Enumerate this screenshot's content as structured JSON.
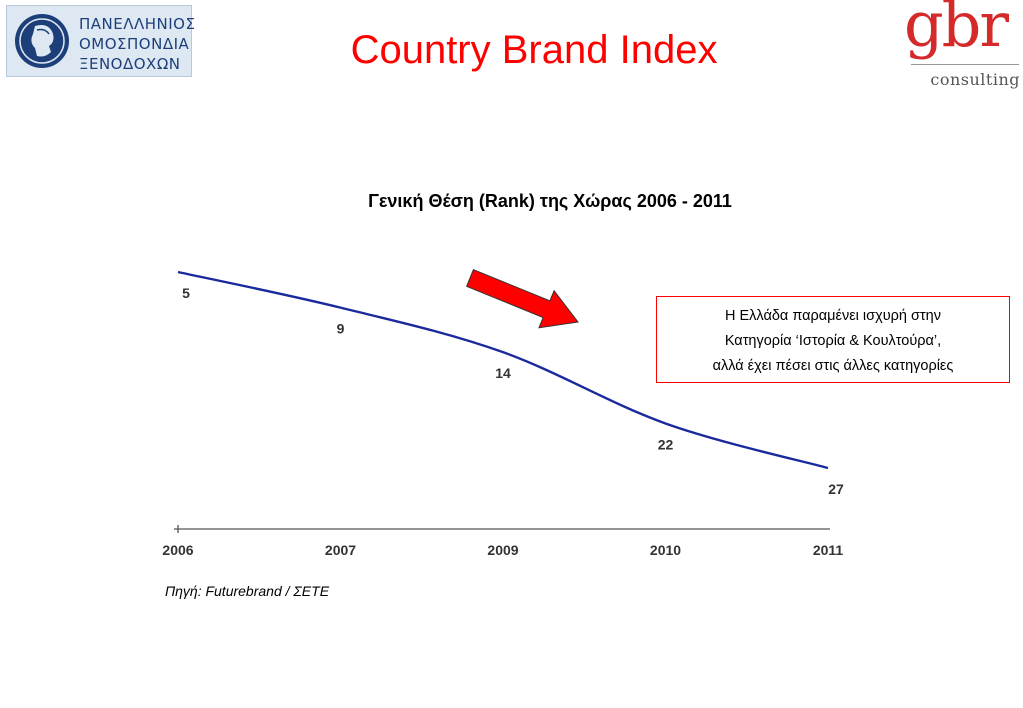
{
  "header": {
    "title": "Country Brand Index",
    "org_logo": {
      "lines": [
        "ΠΑΝΕΛΛΗΝΙΟΣ",
        "ΟΜΟΣΠΟΝΔΙΑ",
        "ΞΕΝΟΔΟΧΩΝ"
      ]
    },
    "company_logo": {
      "wordmark": "gbr",
      "subtitle": "consulting"
    }
  },
  "chart_data": {
    "type": "line",
    "title": "Γενική Θέση (Rank) της Χώρας 2006 - 2011",
    "categories": [
      "2006",
      "2007",
      "2009",
      "2010",
      "2011"
    ],
    "series": [
      {
        "values": [
          5,
          9,
          14,
          22,
          27
        ]
      }
    ],
    "xlabel": "",
    "ylabel": "",
    "y_inverted": true,
    "grid": false,
    "colors": {
      "line": "#1a2a9c",
      "arrow": "#ff0000",
      "axis": "#555555"
    }
  },
  "annotation": {
    "lines": [
      "Η Ελλάδα παραμένει ισχυρή στην",
      "Κατηγορία ‘Ιστορία & Κουλτούρα’,",
      "αλλά έχει πέσει στις άλλες κατηγορίες"
    ],
    "border_color": "#ff0000"
  },
  "source": "Πηγή: Futurebrand / ΣΕΤΕ",
  "colors": {
    "title": "#ff0000",
    "brand_red": "#d42a2a",
    "navy": "#1d3f79"
  }
}
